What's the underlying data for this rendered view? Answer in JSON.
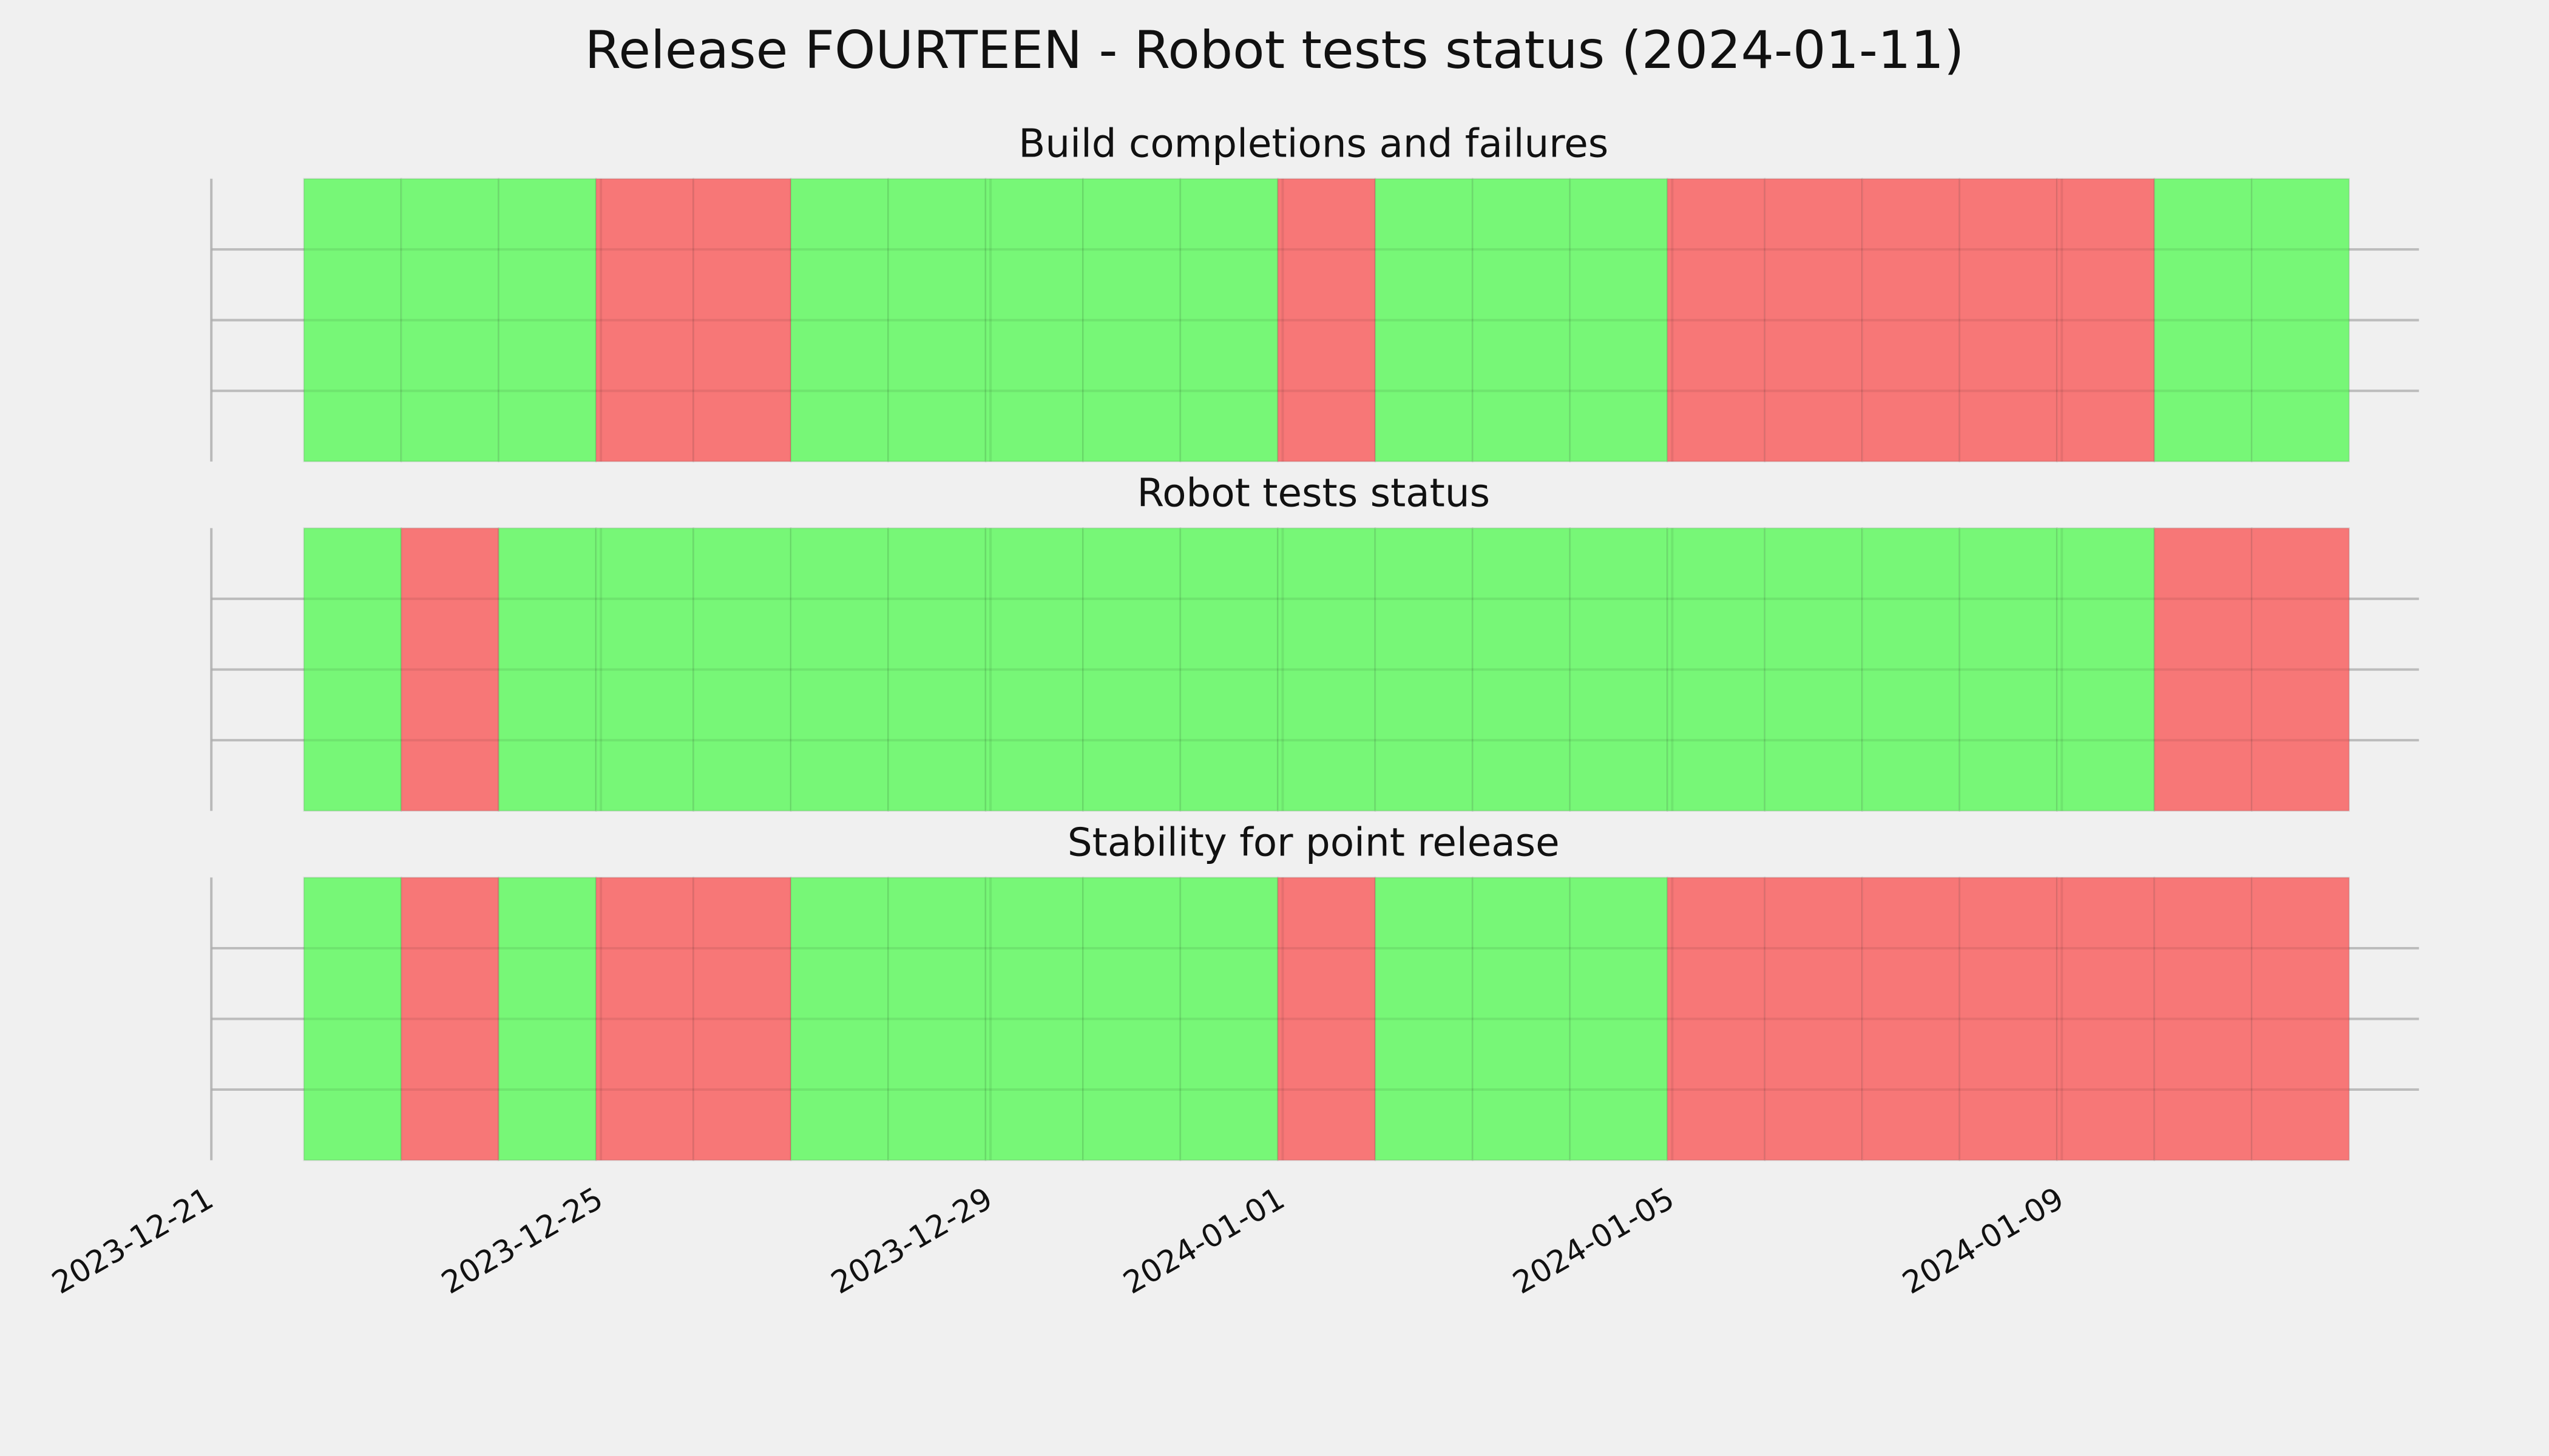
{
  "chart_data": {
    "type": "timeline",
    "title": "Release FOURTEEN - Robot tests status (2024-01-11)",
    "x": [
      "2023-12-22",
      "2023-12-23",
      "2023-12-24",
      "2023-12-25",
      "2023-12-26",
      "2023-12-27",
      "2023-12-28",
      "2023-12-29",
      "2023-12-30",
      "2023-12-31",
      "2024-01-01",
      "2024-01-02",
      "2024-01-03",
      "2024-01-04",
      "2024-01-05",
      "2024-01-06",
      "2024-01-07",
      "2024-01-08",
      "2024-01-09",
      "2024-01-10",
      "2024-01-11"
    ],
    "xlim": [
      "2023-12-21",
      "2024-01-12T16:00"
    ],
    "xticks": [
      "2023-12-21",
      "2023-12-25",
      "2023-12-29",
      "2024-01-01",
      "2024-01-05",
      "2024-01-09"
    ],
    "ylim": [
      0,
      1
    ],
    "yticks": [
      0.25,
      0.5,
      0.75
    ],
    "grid": true,
    "panels": [
      {
        "title": "Build completions and failures",
        "colors": [
          "#77f777",
          "#77f777",
          "#77f777",
          "#f77777",
          "#f77777",
          "#77f777",
          "#77f777",
          "#77f777",
          "#77f777",
          "#77f777",
          "#f77777",
          "#77f777",
          "#77f777",
          "#77f777",
          "#f77777",
          "#f77777",
          "#f77777",
          "#f77777",
          "#f77777",
          "#77f777",
          "#77f777"
        ]
      },
      {
        "title": "Robot tests status",
        "colors": [
          "#77f777",
          "#f77777",
          "#77f777",
          "#77f777",
          "#77f777",
          "#77f777",
          "#77f777",
          "#77f777",
          "#77f777",
          "#77f777",
          "#77f777",
          "#77f777",
          "#77f777",
          "#77f777",
          "#77f777",
          "#77f777",
          "#77f777",
          "#77f777",
          "#77f777",
          "#f77777",
          "#f77777"
        ]
      },
      {
        "title": "Stability for point release",
        "colors": [
          "#77f777",
          "#f77777",
          "#77f777",
          "#f77777",
          "#f77777",
          "#77f777",
          "#77f777",
          "#77f777",
          "#77f777",
          "#77f777",
          "#f77777",
          "#77f777",
          "#77f777",
          "#77f777",
          "#f77777",
          "#f77777",
          "#f77777",
          "#f77777",
          "#f77777",
          "#f77777",
          "#f77777"
        ]
      }
    ]
  }
}
